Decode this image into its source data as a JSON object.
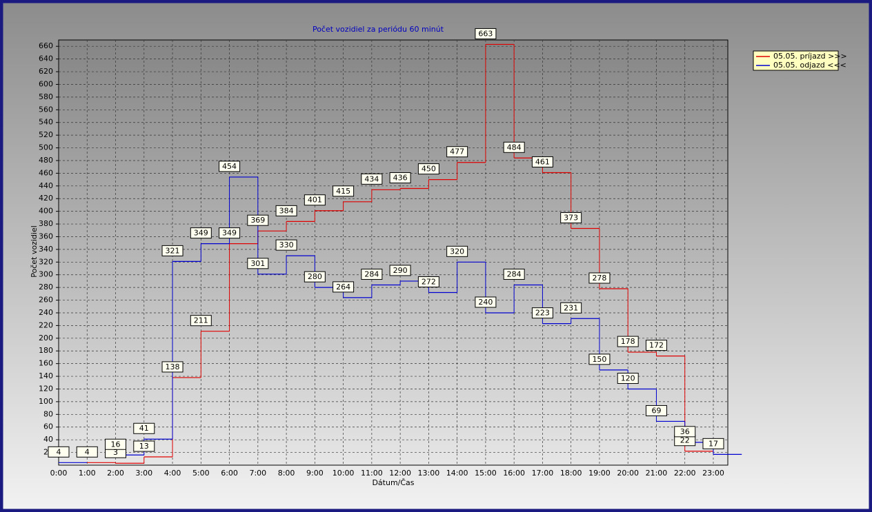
{
  "chart_data": {
    "type": "step",
    "title": "Počet vozidiel za periódu 60 minút",
    "x_label": "Dátum/Čas",
    "y_label": "Počet vozidiel",
    "categories": [
      "0:00",
      "1:00",
      "2:00",
      "3:00",
      "4:00",
      "5:00",
      "6:00",
      "7:00",
      "8:00",
      "9:00",
      "10:00",
      "11:00",
      "12:00",
      "13:00",
      "14:00",
      "15:00",
      "16:00",
      "17:00",
      "18:00",
      "19:00",
      "20:00",
      "21:00",
      "22:00",
      "23:00"
    ],
    "series": [
      {
        "name": "05.05.  príjazd >>>",
        "color": "#e00000",
        "values": [
          null,
          4,
          3,
          13,
          138,
          211,
          349,
          369,
          384,
          401,
          415,
          434,
          436,
          450,
          477,
          663,
          484,
          461,
          373,
          278,
          178,
          172,
          22,
          null
        ]
      },
      {
        "name": "05.05.  odjazd <<<",
        "color": "#0000d0",
        "values": [
          4,
          null,
          16,
          41,
          321,
          349,
          454,
          301,
          330,
          280,
          264,
          284,
          290,
          272,
          320,
          240,
          284,
          223,
          231,
          150,
          120,
          69,
          36,
          17
        ]
      }
    ],
    "ylim": [
      0,
      670
    ],
    "yticks": [
      20,
      40,
      60,
      80,
      100,
      120,
      140,
      160,
      180,
      200,
      220,
      240,
      260,
      280,
      300,
      320,
      340,
      360,
      380,
      400,
      420,
      440,
      460,
      480,
      500,
      520,
      540,
      560,
      580,
      600,
      620,
      640,
      660
    ],
    "grid": true
  }
}
